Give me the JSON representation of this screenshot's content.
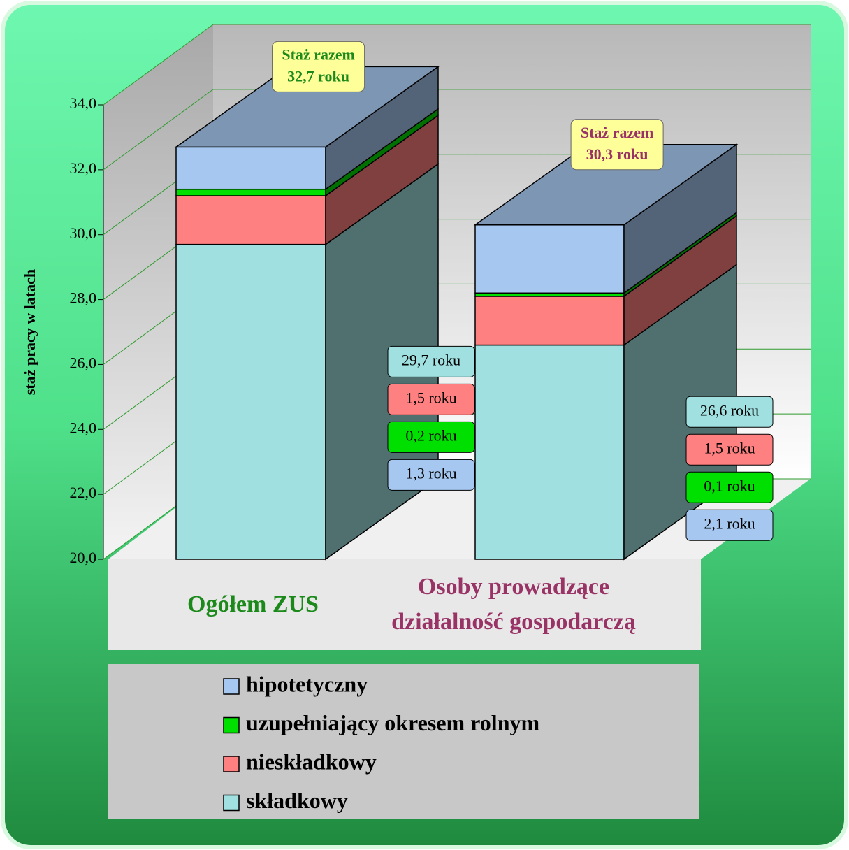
{
  "chart_data": {
    "type": "bar3d_stacked",
    "y_axis_label": "staż pracy w latach",
    "categories": [
      "Ogółem ZUS",
      "Osoby prowadzące działalność gospodarczą"
    ],
    "category_colors": [
      "#1b8a1b",
      "#993366"
    ],
    "series": [
      {
        "name": "składkowy",
        "color": "#a0e0e0",
        "values": [
          29.7,
          26.6
        ],
        "value_labels": [
          "29,7 roku",
          "26,6 roku"
        ]
      },
      {
        "name": "nieskładkowy",
        "color": "#ff8080",
        "values": [
          1.5,
          1.5
        ],
        "value_labels": [
          "1,5 roku",
          "1,5 roku"
        ]
      },
      {
        "name": "uzupełniający okresem rolnym",
        "color": "#00e000",
        "values": [
          0.2,
          0.1
        ],
        "value_labels": [
          "0,2 roku",
          "0,1 roku"
        ]
      },
      {
        "name": "hipotetyczny",
        "color": "#a6c8f0",
        "values": [
          1.3,
          2.1
        ],
        "value_labels": [
          "1,3 roku",
          "2,1 roku"
        ]
      }
    ],
    "annotations": [
      {
        "text": "Staż razem",
        "value": 32.7,
        "value_label": "32,7 roku"
      },
      {
        "text": "Staż razem",
        "value": 30.3,
        "value_label": "30,3 roku"
      }
    ],
    "ylim": [
      20,
      34
    ],
    "yticks": [
      {
        "value": 20,
        "label": "20,0"
      },
      {
        "value": 22,
        "label": "22,0"
      },
      {
        "value": 24,
        "label": "24,0"
      },
      {
        "value": 26,
        "label": "26,0"
      },
      {
        "value": 28,
        "label": "28,0"
      },
      {
        "value": 30,
        "label": "30,0"
      },
      {
        "value": 32,
        "label": "32,0"
      },
      {
        "value": 34,
        "label": "34,0"
      }
    ],
    "grid": true,
    "grid_color": "#2e9a2e",
    "legend": "bottom"
  }
}
